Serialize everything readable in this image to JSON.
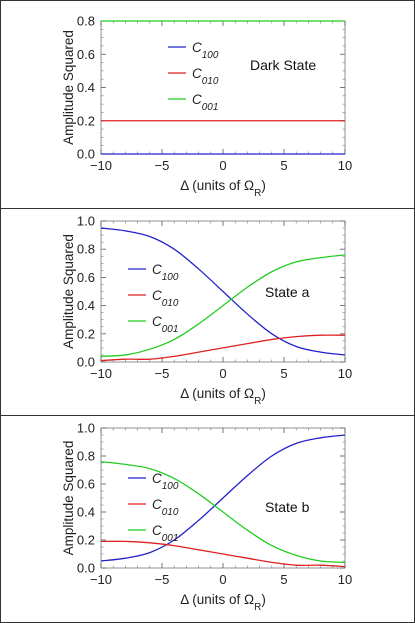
{
  "chart_data": [
    {
      "type": "line",
      "title": "",
      "annotation": "Dark State",
      "xlabel": "Δ (units of Ω_R)",
      "ylabel": "Amplitude Squared",
      "xlim": [
        -10,
        10
      ],
      "ylim": [
        0,
        0.8
      ],
      "x_ticks": [
        "−10",
        "−5",
        "0",
        "5",
        "10"
      ],
      "y_ticks": [
        "0.0",
        "0.2",
        "0.4",
        "0.6",
        "0.8"
      ],
      "legend_position": "upper-center",
      "x": [
        -10,
        -7.5,
        -5,
        -2.5,
        0,
        2.5,
        5,
        7.5,
        10
      ],
      "series": [
        {
          "name": "C_100",
          "color": "#2222cc",
          "values": [
            0,
            0,
            0,
            0,
            0,
            0,
            0,
            0,
            0
          ]
        },
        {
          "name": "C_010",
          "color": "#dd2222",
          "values": [
            0.2,
            0.2,
            0.2,
            0.2,
            0.2,
            0.2,
            0.2,
            0.2,
            0.2
          ]
        },
        {
          "name": "C_001",
          "color": "#22cc22",
          "values": [
            0.8,
            0.8,
            0.8,
            0.8,
            0.8,
            0.8,
            0.8,
            0.8,
            0.8
          ]
        }
      ]
    },
    {
      "type": "line",
      "title": "",
      "annotation": "State a",
      "xlabel": "Δ (units of Ω_R)",
      "ylabel": "Amplitude Squared",
      "xlim": [
        -10,
        10
      ],
      "ylim": [
        0,
        1.0
      ],
      "x_ticks": [
        "−10",
        "−5",
        "0",
        "5",
        "10"
      ],
      "y_ticks": [
        "0.0",
        "0.2",
        "0.4",
        "0.6",
        "0.8",
        "1.0"
      ],
      "legend_position": "center-left",
      "x": [
        -10,
        -8,
        -6,
        -4,
        -2,
        0,
        2,
        4,
        6,
        8,
        10
      ],
      "series": [
        {
          "name": "C_100",
          "color": "#2222cc",
          "values": [
            0.95,
            0.93,
            0.89,
            0.8,
            0.66,
            0.5,
            0.34,
            0.2,
            0.11,
            0.07,
            0.05
          ]
        },
        {
          "name": "C_010",
          "color": "#dd2222",
          "values": [
            0.01,
            0.02,
            0.02,
            0.04,
            0.07,
            0.1,
            0.13,
            0.16,
            0.18,
            0.19,
            0.19
          ]
        },
        {
          "name": "C_001",
          "color": "#22cc22",
          "values": [
            0.04,
            0.05,
            0.09,
            0.16,
            0.27,
            0.4,
            0.53,
            0.64,
            0.71,
            0.74,
            0.76
          ]
        }
      ]
    },
    {
      "type": "line",
      "title": "",
      "annotation": "State b",
      "xlabel": "Δ (units of Ω_R)",
      "ylabel": "Amplitude Squared",
      "xlim": [
        -10,
        10
      ],
      "ylim": [
        0,
        1.0
      ],
      "x_ticks": [
        "−10",
        "−5",
        "0",
        "5",
        "10"
      ],
      "y_ticks": [
        "0.0",
        "0.2",
        "0.4",
        "0.6",
        "0.8",
        "1.0"
      ],
      "legend_position": "center-left",
      "x": [
        -10,
        -8,
        -6,
        -4,
        -2,
        0,
        2,
        4,
        6,
        8,
        10
      ],
      "series": [
        {
          "name": "C_100",
          "color": "#2222cc",
          "values": [
            0.05,
            0.07,
            0.11,
            0.2,
            0.34,
            0.5,
            0.66,
            0.8,
            0.89,
            0.93,
            0.95
          ]
        },
        {
          "name": "C_010",
          "color": "#dd2222",
          "values": [
            0.19,
            0.19,
            0.18,
            0.16,
            0.13,
            0.1,
            0.07,
            0.04,
            0.02,
            0.02,
            0.01
          ]
        },
        {
          "name": "C_001",
          "color": "#22cc22",
          "values": [
            0.76,
            0.74,
            0.71,
            0.64,
            0.53,
            0.4,
            0.27,
            0.16,
            0.09,
            0.05,
            0.04
          ]
        }
      ]
    }
  ]
}
